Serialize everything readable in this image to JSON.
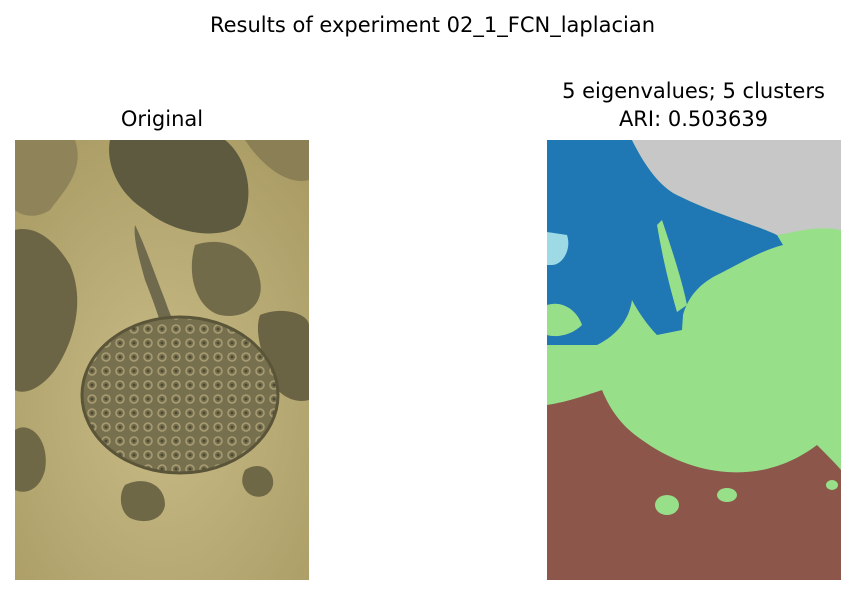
{
  "figure": {
    "suptitle": "Results of experiment 02_1_FCN_laplacian"
  },
  "left": {
    "title": "Original",
    "image_description_icon": "stingray-photo"
  },
  "right": {
    "title_line1": "5 eigenvalues; 5 clusters",
    "title_line2": "ARI: 0.503639",
    "image_description_icon": "segmentation-map",
    "palette": {
      "cluster_blue": "#1f77b4",
      "cluster_gray": "#c7c7c7",
      "cluster_green": "#98df8a",
      "cluster_brown": "#8c564b",
      "cluster_lightblue": "#9edae5"
    }
  },
  "colors": {
    "sand": "#b3a46d",
    "sand_light": "#c7b985",
    "rock_dark": "#5c5a3d",
    "ray_body": "#6f6a4e"
  }
}
